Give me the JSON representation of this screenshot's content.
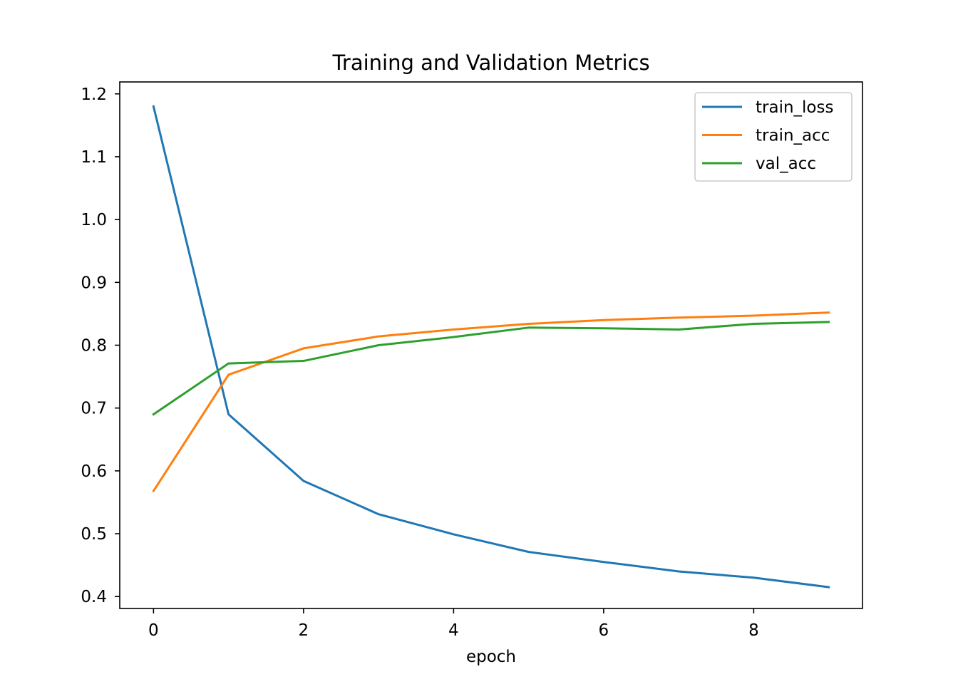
{
  "chart_data": {
    "type": "line",
    "title": "Training and Validation Metrics",
    "xlabel": "epoch",
    "ylabel": "",
    "x": [
      0,
      1,
      2,
      3,
      4,
      5,
      6,
      7,
      8,
      9
    ],
    "xlim": [
      -0.45,
      9.45
    ],
    "ylim": [
      0.381,
      1.219
    ],
    "xticks": [
      0,
      2,
      4,
      6,
      8
    ],
    "xtick_labels": [
      "0",
      "2",
      "4",
      "6",
      "8"
    ],
    "yticks": [
      0.4,
      0.5,
      0.6,
      0.7,
      0.8,
      0.9,
      1.0,
      1.1,
      1.2
    ],
    "ytick_labels": [
      "0.4",
      "0.5",
      "0.6",
      "0.7",
      "0.8",
      "0.9",
      "1.0",
      "1.1",
      "1.2"
    ],
    "grid": false,
    "legend_position": "top-right",
    "series": [
      {
        "name": "train_loss",
        "color": "#1f77b4",
        "values": [
          1.18,
          0.69,
          0.584,
          0.531,
          0.499,
          0.471,
          0.455,
          0.44,
          0.43,
          0.415
        ]
      },
      {
        "name": "train_acc",
        "color": "#ff7f0e",
        "values": [
          0.568,
          0.753,
          0.795,
          0.814,
          0.825,
          0.834,
          0.84,
          0.844,
          0.847,
          0.852
        ]
      },
      {
        "name": "val_acc",
        "color": "#2ca02c",
        "values": [
          0.69,
          0.771,
          0.775,
          0.8,
          0.813,
          0.828,
          0.827,
          0.825,
          0.834,
          0.837
        ]
      }
    ]
  }
}
